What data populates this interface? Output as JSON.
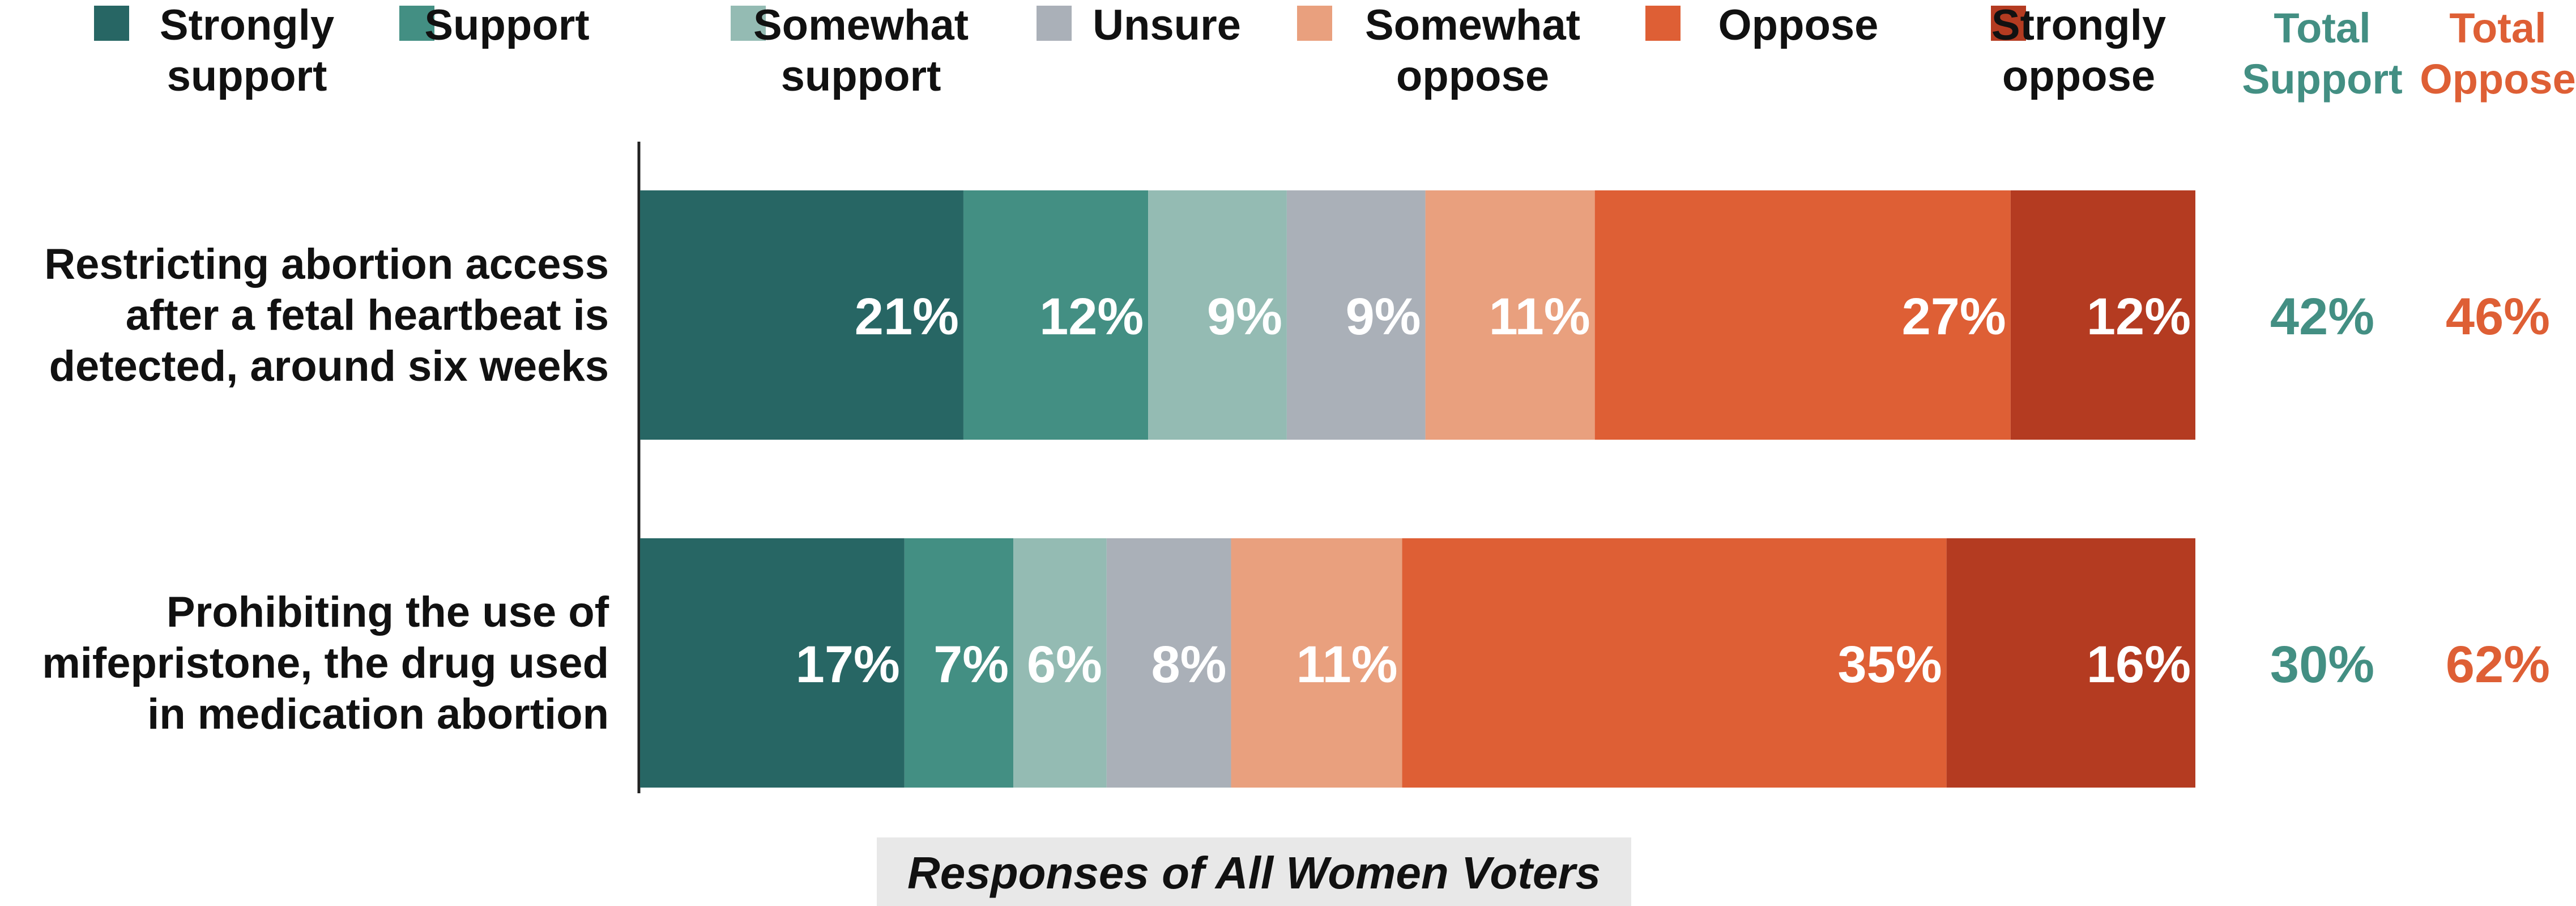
{
  "chart_data": {
    "type": "bar",
    "orientation": "horizontal",
    "stacked": true,
    "categories": [
      [
        "Restricting abortion access",
        "after a fetal heartbeat is",
        "detected, around six weeks"
      ],
      [
        "Prohibiting the use of",
        "mifepristone, the drug used",
        "in medication abortion"
      ]
    ],
    "series": [
      {
        "name": [
          "Strongly",
          "support"
        ],
        "color": "#276664",
        "values": [
          21,
          17
        ]
      },
      {
        "name": [
          "Support"
        ],
        "color": "#438f83",
        "values": [
          12,
          7
        ]
      },
      {
        "name": [
          "Somewhat",
          "support"
        ],
        "color": "#94bbb3",
        "values": [
          9,
          6
        ]
      },
      {
        "name": [
          "Unsure"
        ],
        "color": "#aab0b8",
        "values": [
          9,
          8
        ]
      },
      {
        "name": [
          "Somewhat",
          "oppose"
        ],
        "color": "#e9a07e",
        "values": [
          11,
          11
        ]
      },
      {
        "name": [
          "Oppose"
        ],
        "color": "#de5f35",
        "values": [
          27,
          35
        ]
      },
      {
        "name": [
          "Strongly",
          "oppose"
        ],
        "color": "#b43b21",
        "values": [
          12,
          16
        ]
      }
    ],
    "value_suffix": "%",
    "totals": [
      {
        "name": [
          "Total",
          "Support"
        ],
        "color": "#438f83",
        "values": [
          "42%",
          "30%"
        ]
      },
      {
        "name": [
          "Total",
          "Oppose"
        ],
        "color": "#de5f35",
        "values": [
          "46%",
          "62%"
        ]
      }
    ],
    "xlabel": "Responses of All Women Voters",
    "legend_position": "top",
    "grid": false
  }
}
